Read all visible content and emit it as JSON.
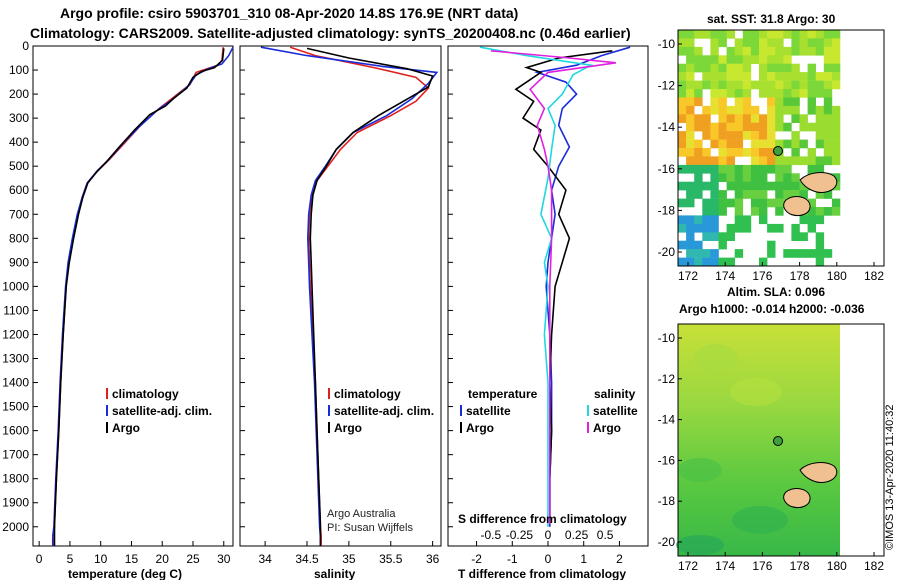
{
  "header": {
    "line1": "Argo profile: csiro 5903701_310 08-Apr-2020 14.8S 176.9E (NRT data)",
    "line2": "Climatology: CARS2009. Satellite-adjusted climatology: synTS_20200408.nc (0.46d earlier)"
  },
  "colors": {
    "climatology": "#e02020",
    "satellite": "#1a2cd8",
    "argo": "#000000",
    "sal_satellite": "#20d8e0",
    "sal_argo": "#e020e0"
  },
  "chart_data": [
    {
      "type": "line",
      "name": "temperature",
      "xlabel": "temperature (deg C)",
      "xlim": [
        -1,
        31.5
      ],
      "ylim": [
        2080,
        0
      ],
      "xticks": [
        0,
        5,
        10,
        15,
        20,
        25,
        30
      ],
      "yticks": [
        0,
        100,
        200,
        300,
        400,
        500,
        600,
        700,
        800,
        900,
        1000,
        1100,
        1200,
        1300,
        1400,
        1500,
        1600,
        1700,
        1800,
        1900,
        2000
      ],
      "legend": [
        "climatology",
        "satellite-adj. clim.",
        "Argo"
      ],
      "series": [
        {
          "name": "climatology",
          "color": "#e02020",
          "points": [
            [
              29.9,
              5
            ],
            [
              29.7,
              60
            ],
            [
              29.0,
              80
            ],
            [
              25.5,
              110
            ],
            [
              24.5,
              160
            ],
            [
              21.5,
              220
            ],
            [
              19.5,
              260
            ],
            [
              16.5,
              330
            ],
            [
              14.0,
              400
            ],
            [
              11.5,
              470
            ],
            [
              9.5,
              520
            ],
            [
              7.8,
              570
            ],
            [
              7.0,
              630
            ],
            [
              6.3,
              700
            ],
            [
              5.5,
              800
            ],
            [
              4.8,
              900
            ],
            [
              4.4,
              1000
            ],
            [
              3.9,
              1200
            ],
            [
              3.5,
              1400
            ],
            [
              3.2,
              1600
            ],
            [
              2.8,
              1800
            ],
            [
              2.5,
              2000
            ],
            [
              2.3,
              2040
            ]
          ]
        },
        {
          "name": "satellite-adj. clim.",
          "color": "#1a2cd8",
          "points": [
            [
              31.5,
              5
            ],
            [
              30.8,
              40
            ],
            [
              29.7,
              75
            ],
            [
              27.5,
              95
            ],
            [
              25.5,
              120
            ],
            [
              24.3,
              165
            ],
            [
              21.5,
              225
            ],
            [
              19.3,
              265
            ],
            [
              16.3,
              335
            ],
            [
              13.8,
              400
            ],
            [
              11.4,
              470
            ],
            [
              9.4,
              520
            ],
            [
              7.8,
              570
            ],
            [
              7.0,
              630
            ],
            [
              6.2,
              700
            ],
            [
              5.4,
              800
            ],
            [
              4.7,
              900
            ],
            [
              4.3,
              1000
            ],
            [
              3.8,
              1200
            ],
            [
              3.4,
              1400
            ],
            [
              3.1,
              1600
            ],
            [
              2.7,
              1800
            ],
            [
              2.4,
              2000
            ],
            [
              2.2,
              2040
            ]
          ]
        },
        {
          "name": "Argo",
          "color": "#000000",
          "points": [
            [
              30.0,
              10
            ],
            [
              29.8,
              60
            ],
            [
              28.5,
              90
            ],
            [
              26.5,
              105
            ],
            [
              25.0,
              130
            ],
            [
              24.0,
              175
            ],
            [
              22.0,
              215
            ],
            [
              20.5,
              250
            ],
            [
              18.0,
              285
            ],
            [
              15.5,
              350
            ],
            [
              13.0,
              420
            ],
            [
              11.0,
              480
            ],
            [
              9.3,
              525
            ],
            [
              7.9,
              570
            ],
            [
              7.1,
              630
            ],
            [
              6.4,
              700
            ],
            [
              5.6,
              800
            ],
            [
              4.9,
              900
            ],
            [
              4.4,
              1000
            ],
            [
              3.9,
              1200
            ],
            [
              3.5,
              1400
            ],
            [
              3.2,
              1600
            ],
            [
              2.8,
              1800
            ],
            [
              2.5,
              1990
            ]
          ]
        }
      ]
    },
    {
      "type": "line",
      "name": "salinity",
      "xlabel": "salinity",
      "xlim": [
        33.7,
        36.1
      ],
      "ylim": [
        2080,
        0
      ],
      "xticks": [
        34,
        34.5,
        35,
        35.5,
        36
      ],
      "xtick_labels": [
        "34",
        "34.5",
        "35",
        "35.5",
        "36"
      ],
      "legend": [
        "climatology",
        "satellite-adj. clim.",
        "Argo"
      ],
      "annotation": [
        "Argo Australia",
        "PI: Susan Wijffels"
      ],
      "series": [
        {
          "name": "climatology",
          "color": "#e02020",
          "points": [
            [
              34.3,
              5
            ],
            [
              34.6,
              40
            ],
            [
              35.3,
              90
            ],
            [
              35.8,
              130
            ],
            [
              35.95,
              175
            ],
            [
              35.8,
              230
            ],
            [
              35.5,
              290
            ],
            [
              35.1,
              360
            ],
            [
              34.9,
              430
            ],
            [
              34.75,
              500
            ],
            [
              34.62,
              560
            ],
            [
              34.56,
              620
            ],
            [
              34.53,
              700
            ],
            [
              34.52,
              800
            ],
            [
              34.53,
              900
            ],
            [
              34.54,
              1000
            ],
            [
              34.57,
              1200
            ],
            [
              34.6,
              1400
            ],
            [
              34.62,
              1600
            ],
            [
              34.64,
              1800
            ],
            [
              34.66,
              2000
            ],
            [
              34.67,
              2040
            ]
          ]
        },
        {
          "name": "satellite-adj. clim.",
          "color": "#1a2cd8",
          "points": [
            [
              33.95,
              5
            ],
            [
              34.5,
              40
            ],
            [
              35.4,
              85
            ],
            [
              36.05,
              110
            ],
            [
              35.95,
              155
            ],
            [
              35.75,
              220
            ],
            [
              35.45,
              290
            ],
            [
              35.05,
              360
            ],
            [
              34.85,
              430
            ],
            [
              34.72,
              500
            ],
            [
              34.6,
              560
            ],
            [
              34.55,
              620
            ],
            [
              34.52,
              700
            ],
            [
              34.51,
              800
            ],
            [
              34.52,
              900
            ],
            [
              34.53,
              1000
            ],
            [
              34.56,
              1200
            ],
            [
              34.59,
              1400
            ],
            [
              34.61,
              1600
            ],
            [
              34.63,
              1800
            ],
            [
              34.65,
              2000
            ],
            [
              34.66,
              2040
            ]
          ]
        },
        {
          "name": "Argo",
          "color": "#000000",
          "points": [
            [
              34.5,
              10
            ],
            [
              35.0,
              50
            ],
            [
              35.7,
              95
            ],
            [
              36.0,
              125
            ],
            [
              35.95,
              170
            ],
            [
              35.65,
              230
            ],
            [
              35.35,
              290
            ],
            [
              35.05,
              360
            ],
            [
              34.85,
              430
            ],
            [
              34.73,
              500
            ],
            [
              34.62,
              560
            ],
            [
              34.57,
              620
            ],
            [
              34.55,
              700
            ],
            [
              34.54,
              800
            ],
            [
              34.55,
              900
            ],
            [
              34.56,
              1000
            ],
            [
              34.58,
              1200
            ],
            [
              34.6,
              1400
            ],
            [
              34.62,
              1600
            ],
            [
              34.64,
              1800
            ],
            [
              34.66,
              1990
            ]
          ]
        }
      ]
    },
    {
      "type": "line",
      "name": "difference",
      "xlabel": "T difference from climatology",
      "xlim": [
        -2.8,
        2.8
      ],
      "ylim": [
        2080,
        0
      ],
      "xticks": [
        -2,
        -1,
        0,
        1,
        2
      ],
      "s_axis_label": "S difference from climatology",
      "s_xtick_labels": [
        "-0.5",
        "-0.25",
        "0",
        "0.25",
        "0.5"
      ],
      "legend_left_title": "temperature",
      "legend_right_title": "salinity",
      "legend": [
        "satellite",
        "Argo",
        "satellite",
        "Argo"
      ],
      "series": [
        {
          "name": "T satellite",
          "color": "#1a2cd8",
          "points": [
            [
              2.3,
              5
            ],
            [
              1.5,
              40
            ],
            [
              0.8,
              80
            ],
            [
              -0.3,
              110
            ],
            [
              0.5,
              150
            ],
            [
              0.8,
              200
            ],
            [
              0.4,
              260
            ],
            [
              0.3,
              330
            ],
            [
              0.6,
              420
            ],
            [
              0.3,
              500
            ],
            [
              0.1,
              600
            ],
            [
              0.2,
              700
            ],
            [
              0.1,
              800
            ],
            [
              0.0,
              900
            ],
            [
              -0.05,
              1000
            ],
            [
              0.05,
              1200
            ],
            [
              0.1,
              1400
            ],
            [
              0.1,
              1600
            ],
            [
              0.05,
              1800
            ],
            [
              0.05,
              2000
            ]
          ]
        },
        {
          "name": "T Argo",
          "color": "#000000",
          "points": [
            [
              1.8,
              20
            ],
            [
              0.3,
              50
            ],
            [
              -0.6,
              90
            ],
            [
              -0.2,
              110
            ],
            [
              -0.9,
              180
            ],
            [
              -0.4,
              230
            ],
            [
              -0.7,
              300
            ],
            [
              -0.2,
              350
            ],
            [
              -0.4,
              430
            ],
            [
              0.0,
              500
            ],
            [
              0.5,
              600
            ],
            [
              0.3,
              700
            ],
            [
              0.6,
              800
            ],
            [
              0.4,
              900
            ],
            [
              0.2,
              1000
            ],
            [
              0.1,
              1200
            ],
            [
              0.05,
              1400
            ],
            [
              0.1,
              1600
            ],
            [
              0.05,
              1800
            ],
            [
              0.05,
              1990
            ]
          ]
        },
        {
          "name": "S satellite",
          "color": "#20d8e0",
          "points": [
            [
              -1.9,
              5
            ],
            [
              -0.6,
              40
            ],
            [
              1.2,
              80
            ],
            [
              0.7,
              120
            ],
            [
              0.4,
              200
            ],
            [
              0.0,
              260
            ],
            [
              0.2,
              330
            ],
            [
              0.1,
              430
            ],
            [
              0.0,
              550
            ],
            [
              -0.2,
              700
            ],
            [
              0.1,
              800
            ],
            [
              -0.1,
              900
            ],
            [
              0.0,
              1000
            ],
            [
              -0.1,
              1200
            ],
            [
              0.0,
              1400
            ],
            [
              0.0,
              1600
            ],
            [
              0.0,
              1800
            ],
            [
              0.0,
              2000
            ]
          ]
        },
        {
          "name": "S Argo",
          "color": "#e020e0",
          "points": [
            [
              -1.6,
              20
            ],
            [
              0.6,
              50
            ],
            [
              1.9,
              70
            ],
            [
              0.0,
              110
            ],
            [
              -0.5,
              180
            ],
            [
              -0.1,
              260
            ],
            [
              -0.3,
              330
            ],
            [
              -0.1,
              430
            ],
            [
              0.0,
              500
            ],
            [
              0.1,
              600
            ],
            [
              0.1,
              800
            ],
            [
              0.05,
              1000
            ],
            [
              0.05,
              1200
            ],
            [
              0.05,
              1400
            ],
            [
              0.05,
              1600
            ],
            [
              0.05,
              1800
            ],
            [
              0.05,
              1990
            ]
          ]
        }
      ]
    }
  ],
  "maps": {
    "sst": {
      "title": "sat. SST: 31.8 Argo: 30",
      "xticks": [
        "172",
        "174",
        "176",
        "178",
        "180",
        "182"
      ],
      "yticks": [
        "-10",
        "-12",
        "-14",
        "-16",
        "-18",
        "-20"
      ]
    },
    "sla": {
      "title_line1": "Altim. SLA: 0.096",
      "title_line2": "Argo h1000: -0.014 h2000: -0.036",
      "xticks": [
        "172",
        "174",
        "176",
        "178",
        "180",
        "182"
      ],
      "yticks": [
        "-10",
        "-12",
        "-14",
        "-16",
        "-18",
        "-20"
      ]
    }
  },
  "footer": {
    "stamp": "©IMOS 13-Apr-2020 11:40:32"
  }
}
